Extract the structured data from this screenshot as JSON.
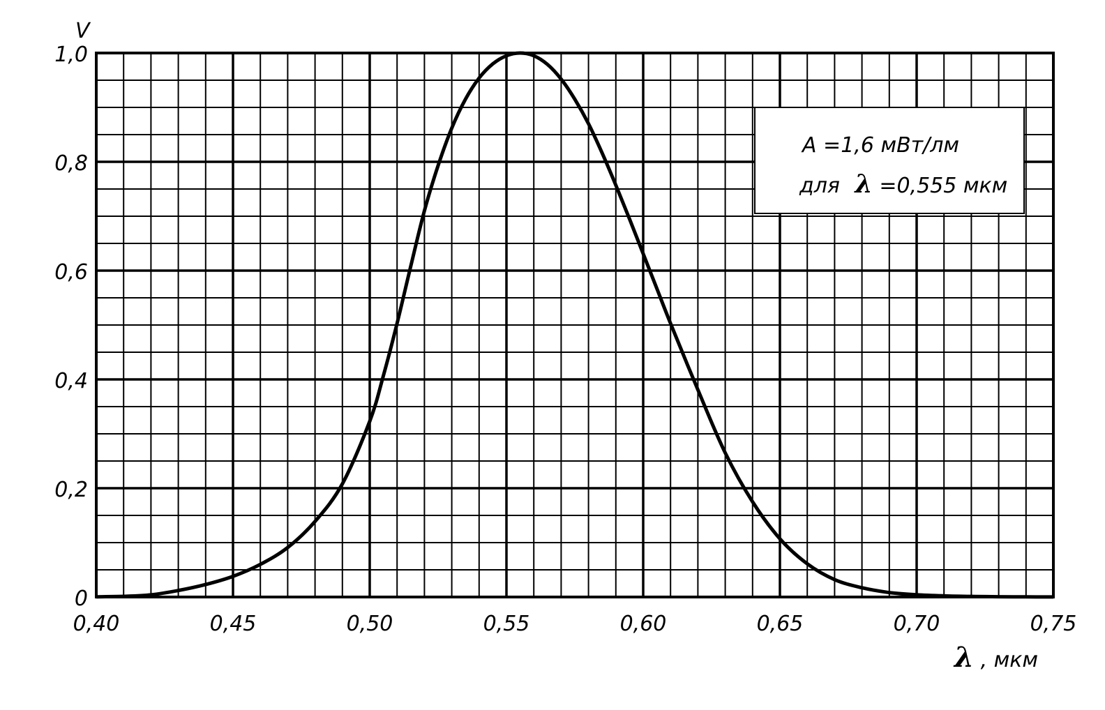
{
  "chart_data": {
    "type": "line",
    "title": "",
    "xlabel": "λ, мкм",
    "xlabel_symbol": "λ",
    "xlabel_unit": ", мкм",
    "ylabel": "V",
    "xlim": [
      0.4,
      0.75
    ],
    "ylim": [
      0,
      1.0
    ],
    "x_ticks": [
      0.4,
      0.45,
      0.5,
      0.55,
      0.6,
      0.65,
      0.7,
      0.75
    ],
    "x_tick_labels": [
      "0,40",
      "0,45",
      "0,50",
      "0,55",
      "0,60",
      "0,65",
      "0,70",
      "0,75"
    ],
    "y_ticks": [
      0,
      0.2,
      0.4,
      0.6,
      0.8,
      1.0
    ],
    "y_tick_labels": [
      "0",
      "0,2",
      "0,4",
      "0,6",
      "0,8",
      "1,0"
    ],
    "grid": true,
    "legend": "none",
    "line_color": "#000000",
    "series": [
      {
        "x": [
          0.4,
          0.41,
          0.42,
          0.43,
          0.44,
          0.45,
          0.46,
          0.47,
          0.48,
          0.49,
          0.5,
          0.505,
          0.51,
          0.515,
          0.52,
          0.525,
          0.53,
          0.535,
          0.54,
          0.545,
          0.55,
          0.555,
          0.56,
          0.565,
          0.57,
          0.575,
          0.58,
          0.585,
          0.59,
          0.595,
          0.6,
          0.605,
          0.61,
          0.62,
          0.63,
          0.64,
          0.65,
          0.66,
          0.67,
          0.68,
          0.69,
          0.7,
          0.71,
          0.72,
          0.73,
          0.74,
          0.75
        ],
        "values": [
          0.0004,
          0.0012,
          0.004,
          0.012,
          0.023,
          0.038,
          0.06,
          0.091,
          0.139,
          0.208,
          0.323,
          0.407,
          0.503,
          0.608,
          0.71,
          0.793,
          0.862,
          0.915,
          0.954,
          0.98,
          0.995,
          1.0,
          0.995,
          0.979,
          0.952,
          0.915,
          0.87,
          0.816,
          0.757,
          0.695,
          0.631,
          0.567,
          0.503,
          0.381,
          0.265,
          0.175,
          0.107,
          0.061,
          0.032,
          0.017,
          0.0082,
          0.0041,
          0.0021,
          0.00105,
          0.00052,
          0.00025,
          0.00012
        ]
      }
    ]
  },
  "annotation": {
    "line1": "A =1,6  мВт/лм",
    "line2_prefix": "для",
    "line2_symbol": "λ",
    "line2_suffix": "=0,555 мкм"
  }
}
